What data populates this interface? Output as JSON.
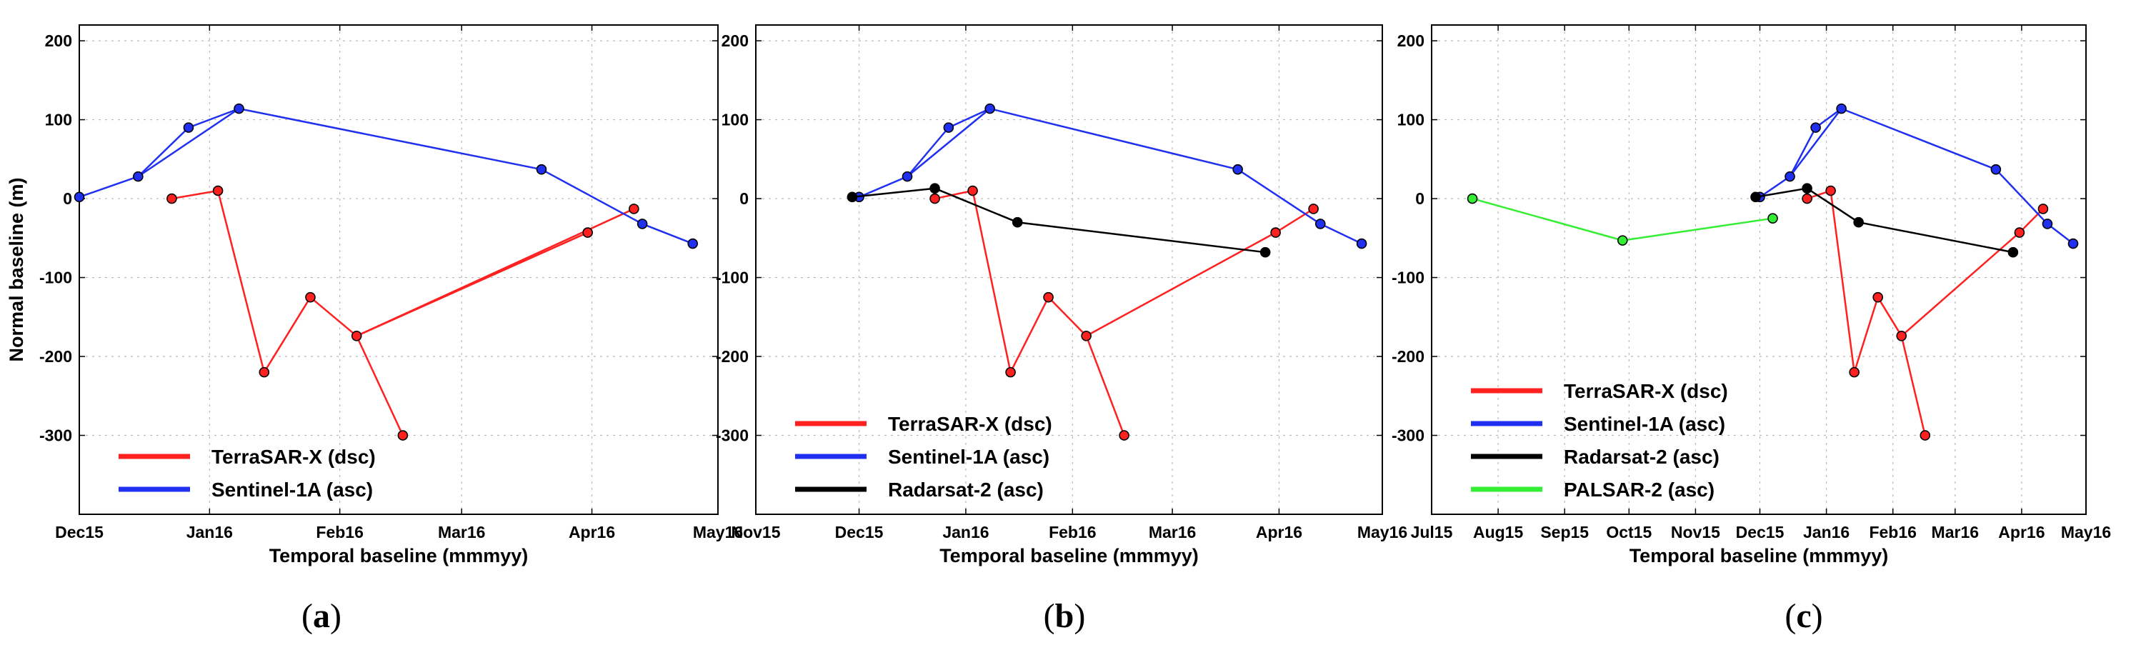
{
  "chart_data": [
    {
      "type": "line",
      "panel_label": "a",
      "xlabel": "Temporal baseline (mmmyy)",
      "ylabel": "Normal baseline (m)",
      "x_ticks": [
        {
          "label": "Dec15",
          "day": 0
        },
        {
          "label": "Jan16",
          "day": 31
        },
        {
          "label": "Feb16",
          "day": 62
        },
        {
          "label": "Mar16",
          "day": 91
        },
        {
          "label": "Apr16",
          "day": 122
        },
        {
          "label": "May16",
          "day": 152
        }
      ],
      "xlim": [
        0,
        152
      ],
      "ylim": [
        -400,
        220
      ],
      "y_ticks": [
        200,
        100,
        0,
        -100,
        -200,
        -300
      ],
      "grid": true,
      "legend_position": "bottom-left",
      "series": [
        {
          "name": "TerraSAR-X (dsc)",
          "color": "#ff2020",
          "style": "star",
          "points": [
            {
              "day": 22,
              "value": 0
            },
            {
              "day": 33,
              "value": 10
            },
            {
              "day": 44,
              "value": -220
            },
            {
              "day": 55,
              "value": -125
            },
            {
              "day": 66,
              "value": -174
            },
            {
              "day": 77,
              "value": -300
            },
            {
              "day": 132,
              "value": -13
            },
            {
              "day": 121,
              "value": -43
            }
          ],
          "connect_to_first": true,
          "hub_index": 1,
          "hub_links": [
            [
              1,
              2
            ],
            [
              2,
              3
            ],
            [
              3,
              4
            ],
            [
              4,
              6
            ],
            [
              4,
              5
            ],
            [
              4,
              7
            ]
          ]
        },
        {
          "name": "Sentinel-1A (asc)",
          "color": "#2030f0",
          "points": [
            {
              "day": 0,
              "value": 2
            },
            {
              "day": 14,
              "value": 28
            },
            {
              "day": 26,
              "value": 90
            },
            {
              "day": 38,
              "value": 114
            },
            {
              "day": 110,
              "value": 37
            },
            {
              "day": 134,
              "value": -32
            },
            {
              "day": 146,
              "value": -57
            }
          ],
          "links": [
            [
              0,
              1
            ],
            [
              1,
              3
            ],
            [
              1,
              2
            ],
            [
              2,
              3
            ],
            [
              3,
              4
            ],
            [
              4,
              5
            ],
            [
              5,
              6
            ]
          ]
        }
      ]
    },
    {
      "type": "line",
      "panel_label": "b",
      "xlabel": "Temporal baseline (mmmyy)",
      "ylabel": "",
      "x_ticks": [
        {
          "label": "Nov15",
          "day": 0
        },
        {
          "label": "Dec15",
          "day": 30
        },
        {
          "label": "Jan16",
          "day": 61
        },
        {
          "label": "Feb16",
          "day": 92
        },
        {
          "label": "Mar16",
          "day": 121
        },
        {
          "label": "Apr16",
          "day": 152
        },
        {
          "label": "May16",
          "day": 182
        }
      ],
      "xlim": [
        0,
        182
      ],
      "ylim": [
        -400,
        220
      ],
      "y_ticks": [
        200,
        100,
        0,
        -100,
        -200,
        -300
      ],
      "grid": true,
      "legend_position": "bottom-left",
      "series": [
        {
          "name": "TerraSAR-X (dsc)",
          "color": "#ff2020",
          "points": [
            {
              "day": 52,
              "value": 0
            },
            {
              "day": 63,
              "value": 10
            },
            {
              "day": 74,
              "value": -220
            },
            {
              "day": 85,
              "value": -125
            },
            {
              "day": 96,
              "value": -174
            },
            {
              "day": 107,
              "value": -300
            },
            {
              "day": 151,
              "value": -43
            },
            {
              "day": 162,
              "value": -13
            }
          ],
          "links": [
            [
              0,
              1
            ],
            [
              1,
              2
            ],
            [
              2,
              3
            ],
            [
              3,
              4
            ],
            [
              4,
              5
            ],
            [
              4,
              6
            ],
            [
              6,
              7
            ]
          ]
        },
        {
          "name": "Sentinel-1A (asc)",
          "color": "#2030f0",
          "points": [
            {
              "day": 30,
              "value": 2
            },
            {
              "day": 44,
              "value": 28
            },
            {
              "day": 56,
              "value": 90
            },
            {
              "day": 68,
              "value": 114
            },
            {
              "day": 140,
              "value": 37
            },
            {
              "day": 164,
              "value": -32
            },
            {
              "day": 176,
              "value": -57
            }
          ],
          "links": [
            [
              0,
              1
            ],
            [
              1,
              3
            ],
            [
              1,
              2
            ],
            [
              2,
              3
            ],
            [
              3,
              4
            ],
            [
              4,
              5
            ],
            [
              5,
              6
            ]
          ]
        },
        {
          "name": "Radarsat-2 (asc)",
          "color": "#000000",
          "points": [
            {
              "day": 28,
              "value": 2
            },
            {
              "day": 52,
              "value": 13
            },
            {
              "day": 76,
              "value": -30
            },
            {
              "day": 148,
              "value": -68
            }
          ],
          "links": [
            [
              0,
              1
            ],
            [
              1,
              2
            ],
            [
              2,
              3
            ]
          ]
        }
      ]
    },
    {
      "type": "line",
      "panel_label": "c",
      "xlabel": "Temporal baseline (mmmyy)",
      "ylabel": "",
      "x_ticks": [
        {
          "label": "Jul15",
          "day": 0
        },
        {
          "label": "Aug15",
          "day": 31
        },
        {
          "label": "Sep15",
          "day": 62
        },
        {
          "label": "Oct15",
          "day": 92
        },
        {
          "label": "Nov15",
          "day": 123
        },
        {
          "label": "Dec15",
          "day": 153
        },
        {
          "label": "Jan16",
          "day": 184
        },
        {
          "label": "Feb16",
          "day": 215
        },
        {
          "label": "Mar16",
          "day": 244
        },
        {
          "label": "Apr16",
          "day": 275
        },
        {
          "label": "May16",
          "day": 305
        }
      ],
      "xlim": [
        0,
        305
      ],
      "ylim": [
        -400,
        220
      ],
      "y_ticks": [
        200,
        100,
        0,
        -100,
        -200,
        -300
      ],
      "grid": true,
      "legend_position": "bottom-left",
      "series": [
        {
          "name": "TerraSAR-X (dsc)",
          "color": "#ff2020",
          "points": [
            {
              "day": 175,
              "value": 0
            },
            {
              "day": 186,
              "value": 10
            },
            {
              "day": 197,
              "value": -220
            },
            {
              "day": 208,
              "value": -125
            },
            {
              "day": 219,
              "value": -174
            },
            {
              "day": 230,
              "value": -300
            },
            {
              "day": 274,
              "value": -43
            },
            {
              "day": 285,
              "value": -13
            }
          ],
          "links": [
            [
              0,
              1
            ],
            [
              1,
              2
            ],
            [
              2,
              3
            ],
            [
              3,
              4
            ],
            [
              4,
              5
            ],
            [
              4,
              6
            ],
            [
              6,
              7
            ]
          ]
        },
        {
          "name": "Sentinel-1A (asc)",
          "color": "#2030f0",
          "points": [
            {
              "day": 153,
              "value": 2
            },
            {
              "day": 167,
              "value": 28
            },
            {
              "day": 179,
              "value": 90
            },
            {
              "day": 191,
              "value": 114
            },
            {
              "day": 263,
              "value": 37
            },
            {
              "day": 287,
              "value": -32
            },
            {
              "day": 299,
              "value": -57
            }
          ],
          "links": [
            [
              0,
              1
            ],
            [
              1,
              3
            ],
            [
              1,
              2
            ],
            [
              2,
              3
            ],
            [
              3,
              4
            ],
            [
              4,
              5
            ],
            [
              5,
              6
            ]
          ]
        },
        {
          "name": "Radarsat-2 (asc)",
          "color": "#000000",
          "points": [
            {
              "day": 151,
              "value": 2
            },
            {
              "day": 175,
              "value": 13
            },
            {
              "day": 199,
              "value": -30
            },
            {
              "day": 271,
              "value": -68
            }
          ],
          "links": [
            [
              0,
              1
            ],
            [
              1,
              2
            ],
            [
              2,
              3
            ]
          ]
        },
        {
          "name": "PALSAR-2 (asc)",
          "color": "#33ee33",
          "points": [
            {
              "day": 19,
              "value": 0
            },
            {
              "day": 89,
              "value": -53
            },
            {
              "day": 159,
              "value": -25
            }
          ],
          "links": [
            [
              0,
              1
            ],
            [
              1,
              2
            ]
          ]
        }
      ]
    }
  ]
}
